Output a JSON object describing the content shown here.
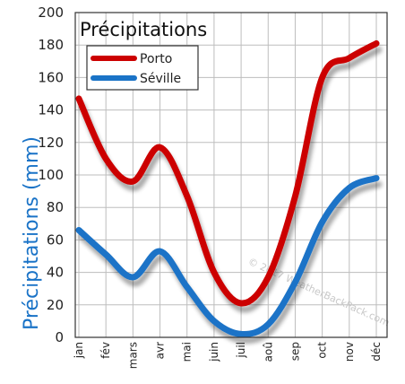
{
  "chart_data": {
    "type": "line",
    "title": "Précipitations",
    "ylabel": "Précipitations (mm)",
    "xlabel": "",
    "categories": [
      "jan",
      "fév",
      "mars",
      "avr",
      "mai",
      "juin",
      "juil",
      "aoû",
      "sep",
      "oct",
      "nov",
      "déc"
    ],
    "ylim": [
      0,
      200
    ],
    "yticks": [
      0,
      20,
      40,
      60,
      80,
      100,
      120,
      140,
      160,
      180,
      200
    ],
    "grid": true,
    "legend_position": "top-left",
    "series": [
      {
        "name": "Porto",
        "color": "#cc0000",
        "values": [
          147,
          110,
          96,
          117,
          87,
          40,
          21,
          37,
          87,
          160,
          172,
          181
        ]
      },
      {
        "name": "Séville",
        "color": "#1a73c7",
        "values": [
          66,
          51,
          37,
          53,
          31,
          10,
          2,
          8,
          34,
          71,
          92,
          98
        ]
      }
    ],
    "watermark": "© 2017 WeatherBackPack.com"
  }
}
